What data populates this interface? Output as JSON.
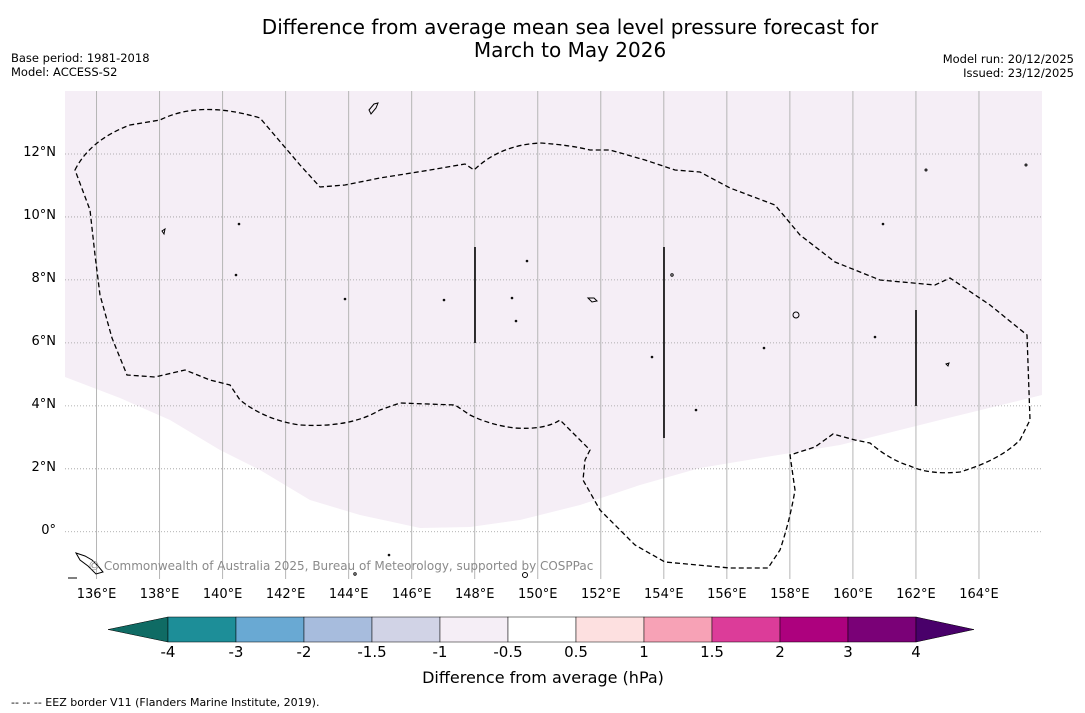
{
  "title": {
    "line1": "Difference from average mean sea level pressure forecast for",
    "line2": "March to May 2026"
  },
  "meta_left": {
    "base_period": "Base period: 1981-2018",
    "model": "Model: ACCESS-S2"
  },
  "meta_right": {
    "model_run": "Model run: 20/12/2025",
    "issued": "Issued: 23/12/2025"
  },
  "map": {
    "lon_range": [
      135,
      166
    ],
    "lat_range": [
      -1.5,
      14
    ],
    "lon_ticks": [
      136,
      138,
      140,
      142,
      144,
      146,
      148,
      150,
      152,
      154,
      156,
      158,
      160,
      162,
      164
    ],
    "lat_ticks": [
      12,
      10,
      8,
      6,
      4,
      2,
      0
    ],
    "lon_tick_labels": [
      "136°E",
      "138°E",
      "140°E",
      "142°E",
      "144°E",
      "146°E",
      "148°E",
      "150°E",
      "152°E",
      "154°E",
      "156°E",
      "158°E",
      "160°E",
      "162°E",
      "164°E"
    ],
    "lat_tick_labels": [
      "12°N",
      "10°N",
      "8°N",
      "6°N",
      "4°N",
      "2°N",
      "0°"
    ],
    "shaded_category": "-1 to -0.5",
    "shade_color": "#f5eef6",
    "credit": "© Commonwealth of Australia 2025, Bureau of Meteorology, supported by COSPPac",
    "boundary_vertical_segments": [
      {
        "lon": 148,
        "lat_from": 6,
        "lat_to": 9
      },
      {
        "lon": 154,
        "lat_from": 3,
        "lat_to": 9
      },
      {
        "lon": 162,
        "lat_from": 4,
        "lat_to": 7
      }
    ]
  },
  "colorbar": {
    "title": "Difference from average (hPa)",
    "tick_labels": [
      "-4",
      "-3",
      "-2",
      "-1.5",
      "-1",
      "-0.5",
      "0.5",
      "1",
      "1.5",
      "2",
      "3",
      "4"
    ],
    "colors": [
      "#1d8e98",
      "#69a9d3",
      "#a7bcdd",
      "#d1d3e6",
      "#f5eef6",
      "#ffffff",
      "#fde0e0",
      "#f7a2b6",
      "#dc3c99",
      "#ad017e",
      "#7a0177"
    ],
    "low_extend_color": "#0f6b64",
    "high_extend_color": "#49006a"
  },
  "footer": "--  --  -- EEZ border V11 (Flanders Marine Institute, 2019)."
}
